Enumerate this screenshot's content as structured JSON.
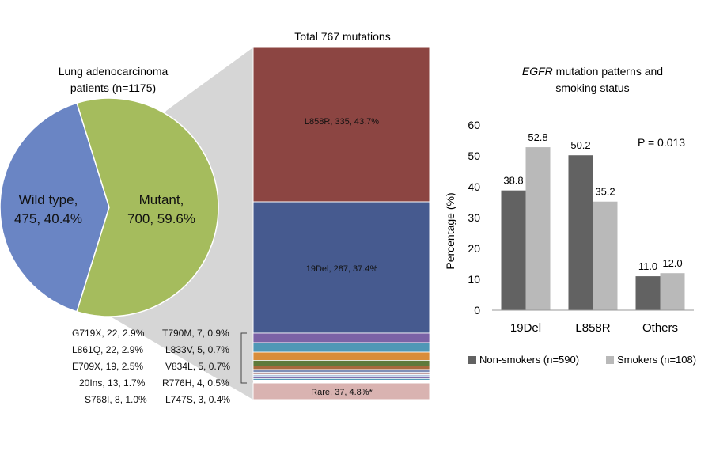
{
  "colors": {
    "wild": "#6a85c4",
    "mutant": "#a5bc5d",
    "wedge": "#d6d6d6",
    "l858r": "#8c4542",
    "del19": "#465a8f",
    "rare": "#d9b3b1",
    "nonsmokers": "#626262",
    "smokers": "#b9b9b9",
    "minor": [
      "#7b62a6",
      "#4f97b6",
      "#d98d3a",
      "#5f7a3a",
      "#a86a3c",
      "#7f8fb8",
      "#c0a0a0",
      "#b5c6e0"
    ]
  },
  "chart_data": [
    {
      "type": "pie",
      "title": "Lung adenocarcinoma patients (n=1175)",
      "title_lines": [
        "Lung adenocarcinoma",
        "patients (n=1175)"
      ],
      "slices": [
        {
          "name": "Wild type",
          "value": 475,
          "pct": 40.4,
          "label_lines": [
            "Wild type,",
            "475, 40.4%"
          ]
        },
        {
          "name": "Mutant",
          "value": 700,
          "pct": 59.6,
          "label_lines": [
            "Mutant,",
            "700, 59.6%"
          ]
        }
      ]
    },
    {
      "type": "bar",
      "subtype": "stacked-100",
      "title": "Total 767 mutations",
      "total": 767,
      "segments": [
        {
          "name": "L858R",
          "count": 335,
          "pct": 43.7,
          "label": "L858R, 335, 43.7%"
        },
        {
          "name": "19Del",
          "count": 287,
          "pct": 37.4,
          "label": "19Del, 287, 37.4%"
        },
        {
          "name": "G719X",
          "count": 22,
          "pct": 2.9
        },
        {
          "name": "L861Q",
          "count": 22,
          "pct": 2.9
        },
        {
          "name": "E709X",
          "count": 19,
          "pct": 2.5
        },
        {
          "name": "20Ins",
          "count": 13,
          "pct": 1.7
        },
        {
          "name": "S768I",
          "count": 8,
          "pct": 1.0
        },
        {
          "name": "T790M",
          "count": 7,
          "pct": 0.9
        },
        {
          "name": "L833V",
          "count": 5,
          "pct": 0.7
        },
        {
          "name": "V834L",
          "count": 5,
          "pct": 0.7
        },
        {
          "name": "R776H",
          "count": 4,
          "pct": 0.5
        },
        {
          "name": "L747S",
          "count": 3,
          "pct": 0.4
        },
        {
          "name": "Rare",
          "count": 37,
          "pct": 4.8,
          "label": "Rare, 37, 4.8%*"
        }
      ],
      "minor_labels": [
        "G719X, 22, 2.9%",
        "L861Q, 22, 2.9%",
        "E709X, 19, 2.5%",
        "20Ins, 13, 1.7%",
        "S768I, 8, 1.0%",
        "T790M, 7, 0.9%",
        "L833V, 5, 0.7%",
        "V834L, 5, 0.7%",
        "R776H, 4, 0.5%",
        "L747S, 3, 0.4%"
      ]
    },
    {
      "type": "bar",
      "title_italic": "EGFR",
      "title_rest": " mutation patterns and",
      "title_line2": "smoking status",
      "categories": [
        "19Del",
        "L858R",
        "Others"
      ],
      "series": [
        {
          "name": "Non-smokers (n=590)",
          "values": [
            38.8,
            50.2,
            11.0
          ],
          "labels": [
            "38.8",
            "50.2",
            "11.0"
          ]
        },
        {
          "name": "Smokers (n=108)",
          "values": [
            52.8,
            35.2,
            12.0
          ],
          "labels": [
            "52.8",
            "35.2",
            "12.0"
          ]
        }
      ],
      "ylabel": "Percentage (%)",
      "ylim": [
        0,
        60
      ],
      "yticks": [
        "0",
        "10",
        "20",
        "30",
        "40",
        "50",
        "60"
      ],
      "annotation": "P = 0.013",
      "legend_position": "bottom"
    }
  ]
}
